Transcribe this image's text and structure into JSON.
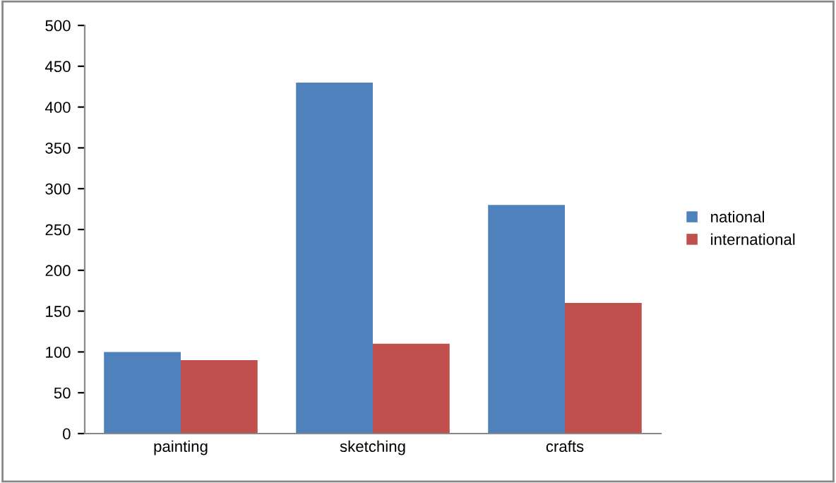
{
  "chart_data": {
    "type": "bar",
    "categories": [
      "painting",
      "sketching",
      "crafts"
    ],
    "series": [
      {
        "name": "national",
        "color": "#4f81bd",
        "values": [
          100,
          430,
          280
        ]
      },
      {
        "name": "international",
        "color": "#c0504d",
        "values": [
          90,
          110,
          160
        ]
      }
    ],
    "ylim": [
      0,
      500
    ],
    "yticks": [
      0,
      50,
      100,
      150,
      200,
      250,
      300,
      350,
      400,
      450,
      500
    ],
    "grid": false,
    "legend": "right"
  }
}
